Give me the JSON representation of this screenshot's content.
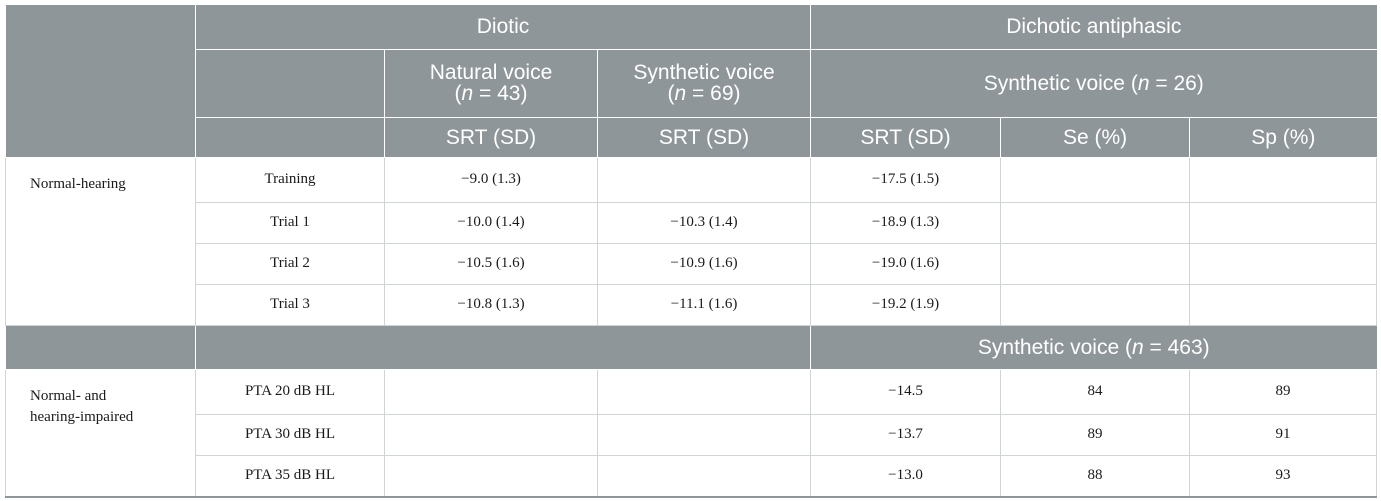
{
  "header": {
    "diotic": "Diotic",
    "dichotic": "Dichotic antiphasic",
    "natural_voice": "Natural voice",
    "synthetic_voice": "Synthetic voice",
    "n_natural_open": "(",
    "n_natural_var": "n",
    "n_natural_rest": " = 43)",
    "n_synthetic_open": "(",
    "n_synthetic_var": "n",
    "n_synthetic_rest": " = 69)",
    "dichotic_synthetic_prefix": "Synthetic voice (",
    "dichotic_synthetic_var": "n",
    "dichotic_synthetic_rest": " = 26)",
    "srt_sd": "SRT (SD)",
    "se": "Se (%)",
    "sp": "Sp (%)"
  },
  "group1": {
    "label": "Normal-hearing",
    "rows": [
      {
        "cond": "Training",
        "natural": "−9.0 (1.3)",
        "synthetic": "",
        "dichotic": "−17.5 (1.5)",
        "se": "",
        "sp": ""
      },
      {
        "cond": "Trial 1",
        "natural": "−10.0 (1.4)",
        "synthetic": "−10.3 (1.4)",
        "dichotic": "−18.9 (1.3)",
        "se": "",
        "sp": ""
      },
      {
        "cond": "Trial 2",
        "natural": "−10.5 (1.6)",
        "synthetic": "−10.9 (1.6)",
        "dichotic": "−19.0 (1.6)",
        "se": "",
        "sp": ""
      },
      {
        "cond": "Trial 3",
        "natural": "−10.8 (1.3)",
        "synthetic": "−11.1 (1.6)",
        "dichotic": "−19.2 (1.9)",
        "se": "",
        "sp": ""
      }
    ]
  },
  "subheader": {
    "prefix": "Synthetic voice (",
    "var": "n",
    "rest": " = 463)"
  },
  "group2": {
    "label_line1": "Normal- and",
    "label_line2": "hearing-impaired",
    "rows": [
      {
        "cond": "PTA 20 dB HL",
        "natural": "",
        "synthetic": "",
        "dichotic": "−14.5",
        "se": "84",
        "sp": "89"
      },
      {
        "cond": "PTA 30 dB HL",
        "natural": "",
        "synthetic": "",
        "dichotic": "−13.7",
        "se": "89",
        "sp": "91"
      },
      {
        "cond": "PTA 35 dB HL",
        "natural": "",
        "synthetic": "",
        "dichotic": "−13.0",
        "se": "88",
        "sp": "93"
      }
    ]
  }
}
